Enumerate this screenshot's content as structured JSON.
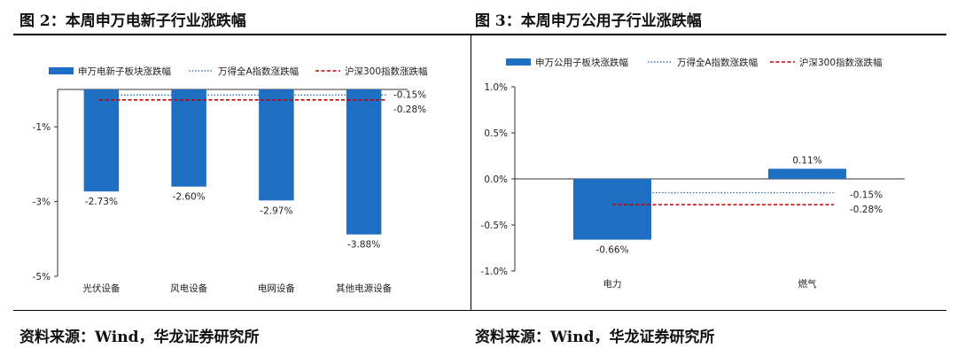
{
  "colors": {
    "bar": "#1e6fc3",
    "axis": "#333333",
    "dotted": "#2e75b6",
    "dashed": "#c00000",
    "text": "#222222"
  },
  "left_panel": {
    "title": "图 2：本周申万电新子行业涨跌幅",
    "source": "资料来源：Wind，华龙证券研究所"
  },
  "right_panel": {
    "title": "图 3：本周申万公用子行业涨跌幅",
    "source": "资料来源：Wind，华龙证券研究所"
  },
  "chart_data": [
    {
      "type": "bar",
      "title": "本周申万电新子行业涨跌幅",
      "categories": [
        "光伏设备",
        "风电设备",
        "电网设备",
        "其他电源设备"
      ],
      "series": [
        {
          "name": "申万电新子板块涨跌幅",
          "values": [
            -2.73,
            -2.6,
            -2.97,
            -3.88
          ]
        }
      ],
      "value_labels": [
        "-2.73%",
        "-2.60%",
        "-2.97%",
        "-3.88%"
      ],
      "reference_lines": [
        {
          "name": "万得全A指数涨跌幅",
          "value": -0.15,
          "label": "-0.15%",
          "style": "dotted"
        },
        {
          "name": "沪深300指数涨跌幅",
          "value": -0.28,
          "label": "-0.28%",
          "style": "dashed"
        }
      ],
      "yticks": [
        -1,
        -3,
        -5
      ],
      "ytick_labels": [
        "-1%",
        "-3%",
        "-5%"
      ],
      "ylim": [
        -5,
        0
      ],
      "xlabel": "",
      "ylabel": "",
      "legend_position": "top"
    },
    {
      "type": "bar",
      "title": "本周申万公用子行业涨跌幅",
      "categories": [
        "电力",
        "燃气"
      ],
      "series": [
        {
          "name": "申万公用子板块涨跌幅",
          "values": [
            -0.66,
            0.11
          ]
        }
      ],
      "value_labels": [
        "-0.66%",
        "0.11%"
      ],
      "reference_lines": [
        {
          "name": "万得全A指数涨跌幅",
          "value": -0.15,
          "label": "-0.15%",
          "style": "dotted"
        },
        {
          "name": "沪深300指数涨跌幅",
          "value": -0.28,
          "label": "-0.28%",
          "style": "dashed"
        }
      ],
      "yticks": [
        1.0,
        0.5,
        0.0,
        -0.5,
        -1.0
      ],
      "ytick_labels": [
        "1.0%",
        "0.5%",
        "0.0%",
        "-0.5%",
        "-1.0%"
      ],
      "ylim": [
        -1.0,
        1.0
      ],
      "xlabel": "",
      "ylabel": "",
      "legend_position": "top"
    }
  ]
}
